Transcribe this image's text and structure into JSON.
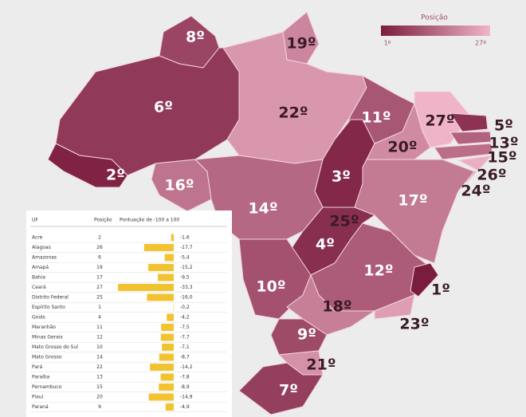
{
  "legend": {
    "title": "Posição",
    "min_label": "1º",
    "max_label": "27º"
  },
  "states": [
    {
      "label": "8º",
      "rank": 8
    },
    {
      "label": "19º",
      "rank": 19
    },
    {
      "label": "6º",
      "rank": 6
    },
    {
      "label": "22º",
      "rank": 22
    },
    {
      "label": "11º",
      "rank": 11
    },
    {
      "label": "27º",
      "rank": 27
    },
    {
      "label": "5º",
      "rank": 5
    },
    {
      "label": "13º",
      "rank": 13
    },
    {
      "label": "15º",
      "rank": 15
    },
    {
      "label": "26º",
      "rank": 26
    },
    {
      "label": "24º",
      "rank": 24
    },
    {
      "label": "20º",
      "rank": 20
    },
    {
      "label": "2º",
      "rank": 2
    },
    {
      "label": "16º",
      "rank": 16
    },
    {
      "label": "3º",
      "rank": 3
    },
    {
      "label": "17º",
      "rank": 17
    },
    {
      "label": "14º",
      "rank": 14
    },
    {
      "label": "25º",
      "rank": 25
    },
    {
      "label": "4º",
      "rank": 4
    },
    {
      "label": "12º",
      "rank": 12
    },
    {
      "label": "10º",
      "rank": 10
    },
    {
      "label": "1º",
      "rank": 1
    },
    {
      "label": "18º",
      "rank": 18
    },
    {
      "label": "23º",
      "rank": 23
    },
    {
      "label": "9º",
      "rank": 9
    },
    {
      "label": "21º",
      "rank": 21
    },
    {
      "label": "7º",
      "rank": 7
    }
  ],
  "table": {
    "headers": [
      "UF",
      "Posição",
      "Pontuação de -100 a 100"
    ],
    "rows": [
      {
        "uf": "Acre",
        "position": 2,
        "score": -1.6,
        "score_label": "-1,6"
      },
      {
        "uf": "Alagoas",
        "position": 26,
        "score": -17.7,
        "score_label": "-17,7"
      },
      {
        "uf": "Amazonas",
        "position": 6,
        "score": -5.4,
        "score_label": "-5,4"
      },
      {
        "uf": "Amapá",
        "position": 19,
        "score": -15.2,
        "score_label": "-15,2"
      },
      {
        "uf": "Bahia",
        "position": 17,
        "score": -9.5,
        "score_label": "-9,5"
      },
      {
        "uf": "Ceará",
        "position": 27,
        "score": -33.3,
        "score_label": "-33,3"
      },
      {
        "uf": "Distrito Federal",
        "position": 25,
        "score": -16.0,
        "score_label": "-16,0"
      },
      {
        "uf": "Espírito Santo",
        "position": 1,
        "score": -0.2,
        "score_label": "-0,2"
      },
      {
        "uf": "Goiás",
        "position": 4,
        "score": -4.2,
        "score_label": "-4,2"
      },
      {
        "uf": "Maranhão",
        "position": 11,
        "score": -7.5,
        "score_label": "-7,5"
      },
      {
        "uf": "Minas Gerais",
        "position": 12,
        "score": -7.7,
        "score_label": "-7,7"
      },
      {
        "uf": "Mato Grosso do Sul",
        "position": 10,
        "score": -7.1,
        "score_label": "-7,1"
      },
      {
        "uf": "Mato Grosso",
        "position": 14,
        "score": -8.7,
        "score_label": "-8,7"
      },
      {
        "uf": "Pará",
        "position": 22,
        "score": -14.2,
        "score_label": "-14,2"
      },
      {
        "uf": "Paraíba",
        "position": 13,
        "score": -7.8,
        "score_label": "-7,8"
      },
      {
        "uf": "Pernambuco",
        "position": 15,
        "score": -8.9,
        "score_label": "-8,9"
      },
      {
        "uf": "Piauí",
        "position": 20,
        "score": -14.9,
        "score_label": "-14,9"
      },
      {
        "uf": "Paraná",
        "position": 9,
        "score": -4.9,
        "score_label": "-4,9"
      }
    ]
  }
}
